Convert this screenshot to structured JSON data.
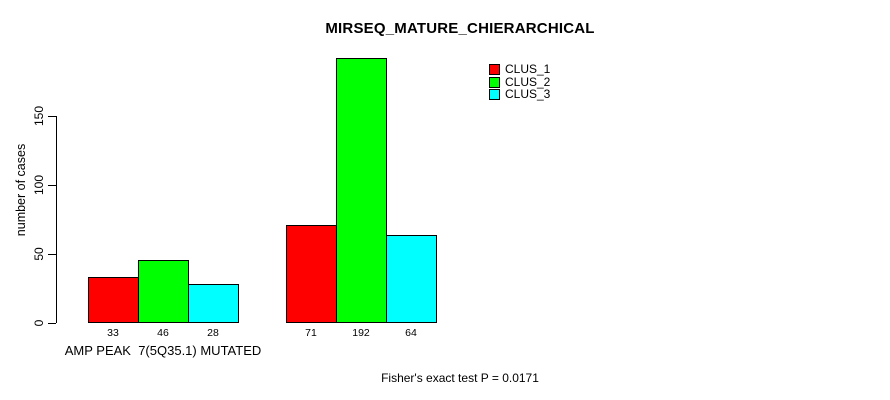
{
  "page": {
    "background_color": "#FFFFFF",
    "text_color": "#000000"
  },
  "chart_data": {
    "type": "bar",
    "title": "MIRSEQ_MATURE_CHIERARCHICAL",
    "xlabel": "",
    "ylabel": "number of cases",
    "ylim": [
      0,
      195
    ],
    "yticks": [
      0,
      50,
      100,
      150
    ],
    "grid": false,
    "legend_position": "top-right",
    "bar_border_color": "#000000",
    "series": [
      {
        "name": "CLUS_1",
        "color": "#FF0000"
      },
      {
        "name": "CLUS_2",
        "color": "#00FF00"
      },
      {
        "name": "CLUS_3",
        "color": "#00FFFF"
      }
    ],
    "groups": [
      {
        "label": "AMP PEAK  7(5Q35.1) MUTATED",
        "values": [
          33,
          46,
          28
        ]
      },
      {
        "label": "",
        "values": [
          71,
          192,
          64
        ]
      }
    ],
    "footnote": "Fisher's exact test P = 0.0171"
  }
}
